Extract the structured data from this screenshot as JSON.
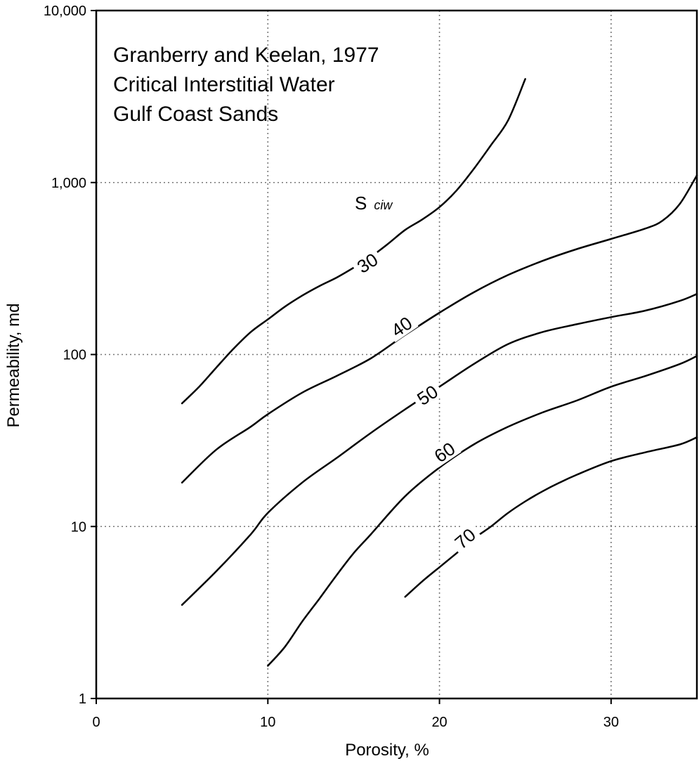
{
  "chart_data": {
    "type": "line",
    "title": "",
    "annotation_lines": [
      "Granberry and Keelan, 1977",
      "Critical Interstitial Water",
      "Gulf Coast Sands"
    ],
    "xlabel": "Porosity, %",
    "ylabel": "Permeability, md",
    "xlim": [
      0,
      35
    ],
    "ylim": [
      1,
      10000
    ],
    "yscale": "log",
    "grid": true,
    "xticks": [
      0,
      10,
      20,
      30
    ],
    "yticks": [
      1,
      10,
      100,
      1000,
      10000
    ],
    "xtick_labels": [
      "0",
      "10",
      "20",
      "30"
    ],
    "ytick_labels": [
      "1",
      "10",
      "100",
      "1,000",
      "10,000"
    ],
    "parameter_label": {
      "main": "S",
      "sub": "ciw"
    },
    "series": [
      {
        "name": "30",
        "label_at": [
          15.8,
          340
        ],
        "x": [
          5,
          6,
          7,
          8,
          9,
          10,
          11,
          12,
          13,
          14,
          15,
          16,
          17,
          18,
          19,
          20,
          21,
          22,
          23,
          24,
          25
        ],
        "y": [
          52,
          65,
          84,
          108,
          135,
          160,
          190,
          220,
          250,
          280,
          320,
          370,
          440,
          530,
          610,
          720,
          900,
          1200,
          1650,
          2300,
          4000
        ]
      },
      {
        "name": "40",
        "label_at": [
          17.8,
          145
        ],
        "x": [
          5,
          7,
          9,
          10,
          12,
          14,
          16,
          18,
          20,
          22,
          24,
          26,
          28,
          30,
          32,
          33,
          34,
          35
        ],
        "y": [
          18,
          28,
          38,
          45,
          60,
          75,
          95,
          130,
          175,
          230,
          290,
          350,
          410,
          470,
          540,
          600,
          750,
          1100
        ]
      },
      {
        "name": "50",
        "label_at": [
          19.3,
          58
        ],
        "x": [
          5,
          7,
          9,
          10,
          12,
          14,
          16,
          18,
          20,
          22,
          24,
          26,
          28,
          30,
          32,
          34,
          35
        ],
        "y": [
          3.5,
          5.5,
          9,
          12,
          18,
          25,
          35,
          48,
          65,
          88,
          115,
          135,
          150,
          165,
          180,
          205,
          225
        ]
      },
      {
        "name": "60",
        "label_at": [
          20.3,
          27
        ],
        "x": [
          10,
          11,
          12,
          13,
          14,
          15,
          16,
          18,
          20,
          22,
          24,
          26,
          28,
          30,
          32,
          34,
          35
        ],
        "y": [
          1.55,
          2.0,
          2.8,
          3.8,
          5.2,
          7,
          9,
          15,
          22,
          30,
          38,
          46,
          54,
          65,
          75,
          88,
          98
        ]
      },
      {
        "name": "70",
        "label_at": [
          21.5,
          8.5
        ],
        "x": [
          18,
          19,
          20,
          21,
          22,
          23,
          24,
          25,
          26,
          27,
          28,
          30,
          32,
          34,
          35
        ],
        "y": [
          3.9,
          4.8,
          5.8,
          7,
          8.5,
          10,
          12,
          14,
          16,
          18,
          20,
          24,
          27,
          30,
          33
        ]
      }
    ]
  }
}
